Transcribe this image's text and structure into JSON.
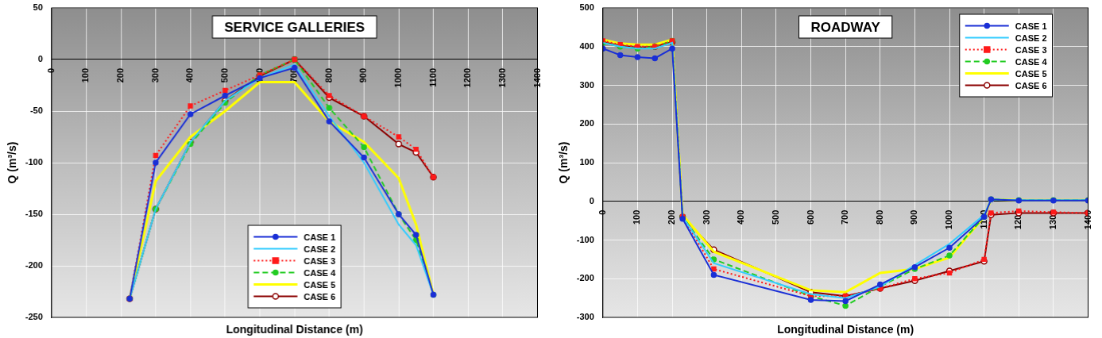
{
  "chart_data": [
    {
      "type": "line",
      "title": "SERVICE GALLERIES",
      "x_label": "Longitudinal Distance (m)",
      "y_label": "Q (m³/s)",
      "x": [
        225,
        300,
        400,
        500,
        600,
        700,
        800,
        900,
        1000,
        1050,
        1100
      ],
      "series": [
        {
          "name": "CASE 1",
          "color": "#1a2fd6",
          "marker": "circle",
          "line_style": "solid",
          "values": [
            -232,
            -100,
            -53,
            -35,
            -18,
            -8,
            -60,
            -95,
            -150,
            -170,
            -228
          ]
        },
        {
          "name": "CASE 2",
          "color": "#33ccff",
          "marker": "none",
          "line_style": "solid",
          "values": [
            -232,
            -145,
            -80,
            -40,
            -18,
            -5,
            -55,
            -100,
            -160,
            -180,
            -228
          ]
        },
        {
          "name": "CASE 3",
          "color": "#ff1a1a",
          "marker": "square",
          "line_style": "dotted",
          "values": [
            -232,
            -93,
            -45,
            -30,
            -15,
            0,
            -35,
            -55,
            -75,
            -87,
            -114
          ]
        },
        {
          "name": "CASE 4",
          "color": "#22cc22",
          "marker": "circle",
          "line_style": "dashed",
          "values": [
            -232,
            -145,
            -82,
            -42,
            -15,
            0,
            -47,
            -85,
            -150,
            -175,
            -228
          ]
        },
        {
          "name": "CASE 5",
          "color": "#ffff00",
          "marker": "none",
          "line_style": "solid",
          "values": [
            -232,
            -118,
            -75,
            -50,
            -22,
            -22,
            -60,
            -80,
            -115,
            -160,
            -228
          ]
        },
        {
          "name": "CASE 6",
          "color": "#8b0000",
          "marker": "open_circle",
          "line_style": "solid",
          "values": [
            -232,
            -145,
            -80,
            -40,
            -16,
            0,
            -37,
            -55,
            -82,
            -90,
            -114
          ]
        }
      ],
      "xlim": [
        0,
        1400
      ],
      "xticks": [
        0,
        100,
        200,
        300,
        400,
        500,
        600,
        700,
        800,
        900,
        1000,
        1100,
        1200,
        1300,
        1400
      ],
      "ylim": [
        -250,
        50
      ],
      "yticks": [
        -250,
        -200,
        -150,
        -100,
        -50,
        0,
        50
      ],
      "grid": true,
      "legend": "lower center"
    },
    {
      "type": "line",
      "title": "ROADWAY",
      "x_label": "Longitudinal Distance (m)",
      "y_label": "Q (m³/s)",
      "x": [
        0,
        50,
        100,
        150,
        200,
        230,
        320,
        600,
        700,
        800,
        900,
        1000,
        1100,
        1120,
        1200,
        1300,
        1400
      ],
      "series": [
        {
          "name": "CASE 1",
          "color": "#1a2fd6",
          "marker": "circle",
          "line_style": "solid",
          "values": [
            395,
            378,
            373,
            370,
            395,
            -45,
            -190,
            -255,
            -258,
            -215,
            -170,
            -120,
            -40,
            5,
            2,
            2,
            2
          ]
        },
        {
          "name": "CASE 2",
          "color": "#33ccff",
          "marker": "none",
          "line_style": "solid",
          "values": [
            410,
            400,
            395,
            395,
            410,
            -40,
            -160,
            -240,
            -250,
            -220,
            -165,
            -110,
            -35,
            5,
            3,
            3,
            3
          ]
        },
        {
          "name": "CASE 3",
          "color": "#ff1a1a",
          "marker": "square",
          "line_style": "dotted",
          "values": [
            415,
            405,
            400,
            400,
            415,
            -40,
            -175,
            -245,
            -245,
            -225,
            -200,
            -185,
            -150,
            -30,
            -25,
            -28,
            -30
          ]
        },
        {
          "name": "CASE 4",
          "color": "#22cc22",
          "marker": "circle",
          "line_style": "dashed",
          "values": [
            410,
            400,
            395,
            400,
            415,
            -40,
            -150,
            -245,
            -270,
            -220,
            -175,
            -140,
            -40,
            5,
            3,
            3,
            3
          ]
        },
        {
          "name": "CASE 5",
          "color": "#ffff00",
          "marker": "none",
          "line_style": "solid",
          "values": [
            418,
            408,
            405,
            405,
            418,
            -35,
            -130,
            -230,
            -235,
            -185,
            -175,
            -145,
            -40,
            5,
            3,
            3,
            3
          ]
        },
        {
          "name": "CASE 6",
          "color": "#8b0000",
          "marker": "open_circle",
          "line_style": "solid",
          "values": [
            412,
            402,
            398,
            400,
            412,
            -40,
            -125,
            -235,
            -245,
            -225,
            -205,
            -180,
            -155,
            -35,
            -30,
            -30,
            -30
          ]
        }
      ],
      "xlim": [
        0,
        1400
      ],
      "xticks": [
        0,
        100,
        200,
        300,
        400,
        500,
        600,
        700,
        800,
        900,
        1000,
        1100,
        1200,
        1300,
        1400
      ],
      "ylim": [
        -300,
        500
      ],
      "yticks": [
        -300,
        -200,
        -100,
        0,
        100,
        200,
        300,
        400,
        500
      ],
      "grid": true,
      "legend": "upper right"
    }
  ]
}
